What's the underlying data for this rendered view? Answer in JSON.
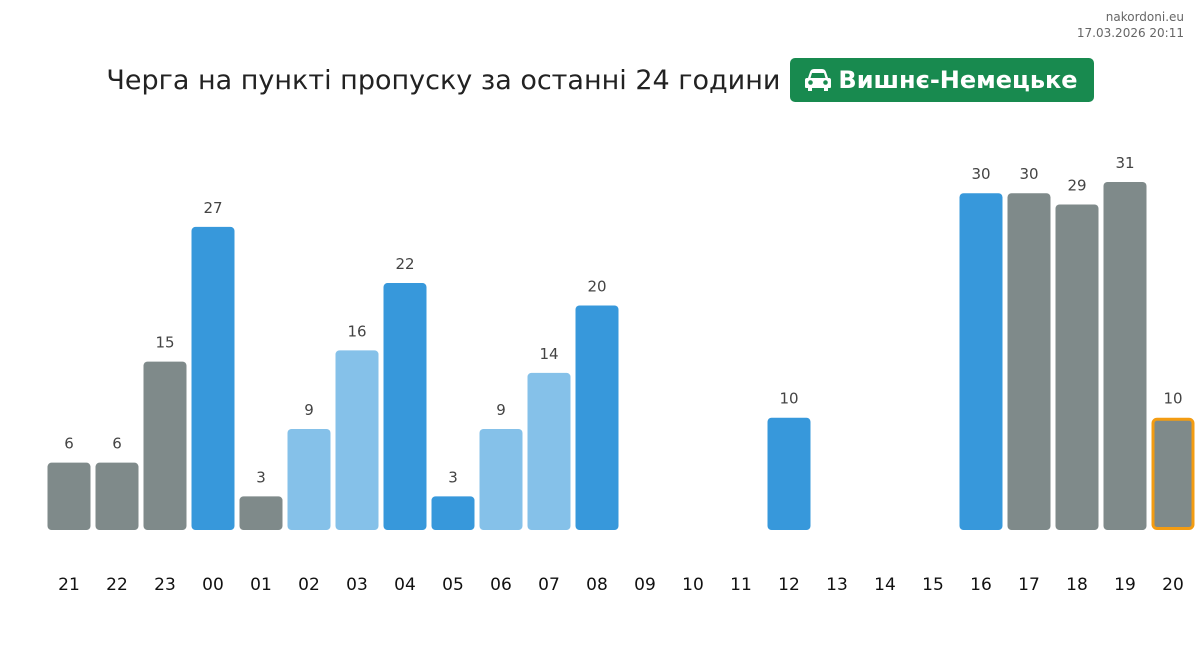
{
  "brand": {
    "site": "nakordoni.eu",
    "timestamp": "17.03.2026 20:11"
  },
  "header": {
    "title": "Черга на пункті пропуску за останні 24 години",
    "checkpoint": "Вишнє-Немецьке",
    "badge_icon": "car-icon",
    "badge_color": "#188a4f"
  },
  "colors": {
    "gray": "#7f8a8a",
    "blue": "#3798db",
    "light_blue": "#85c1e9",
    "highlight_border": "#f39c12"
  },
  "chart_data": {
    "type": "bar",
    "title": "Черга на пункті пропуску за останні 24 години",
    "xlabel": "",
    "ylabel": "",
    "grid": false,
    "legend": "none",
    "categories": [
      "21",
      "22",
      "23",
      "00",
      "01",
      "02",
      "03",
      "04",
      "05",
      "06",
      "07",
      "08",
      "09",
      "10",
      "11",
      "12",
      "13",
      "14",
      "15",
      "16",
      "17",
      "18",
      "19",
      "20"
    ],
    "values": [
      6,
      6,
      15,
      27,
      3,
      9,
      16,
      22,
      3,
      9,
      14,
      20,
      null,
      null,
      null,
      10,
      null,
      null,
      null,
      30,
      30,
      29,
      31,
      10
    ],
    "bar_colors": [
      "gray",
      "gray",
      "gray",
      "blue",
      "gray",
      "light_blue",
      "light_blue",
      "blue",
      "blue",
      "light_blue",
      "light_blue",
      "blue",
      null,
      null,
      null,
      "blue",
      null,
      null,
      null,
      "blue",
      "gray",
      "gray",
      "gray",
      "gray"
    ],
    "highlighted_category": "20",
    "ylim": [
      0,
      31
    ]
  }
}
